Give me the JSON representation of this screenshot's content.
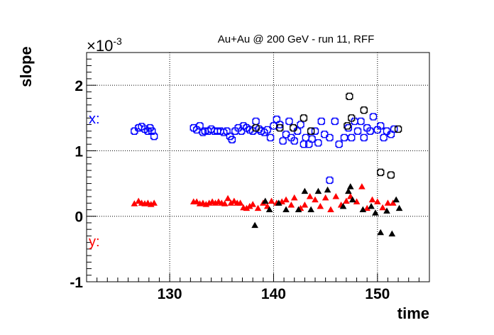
{
  "chart_data": {
    "type": "scatter",
    "title": "Au+Au @ 200 GeV - run 11, RFF",
    "xlabel": "time",
    "ylabel": "slope",
    "y_multiplier": "×10",
    "y_multiplier_exponent": "-3",
    "xlim": [
      122,
      155
    ],
    "ylim": [
      -1,
      2.5
    ],
    "x_ticks": [
      130,
      140,
      150
    ],
    "y_ticks": [
      -1,
      0,
      1,
      2
    ],
    "grid": true,
    "series_labels": {
      "x": "x:",
      "y": "y:"
    },
    "colors": {
      "blue": "#0000ff",
      "red": "#ff0000",
      "black": "#000000"
    },
    "series": [
      {
        "marker": "open-cross",
        "color": "#0000ff",
        "points": [
          [
            126.6,
            1.3
          ],
          [
            127.0,
            1.35
          ],
          [
            127.3,
            1.37
          ],
          [
            127.6,
            1.33
          ],
          [
            127.9,
            1.3
          ],
          [
            128.1,
            1.35
          ],
          [
            128.3,
            1.3
          ],
          [
            128.5,
            1.22
          ],
          [
            132.3,
            1.35
          ],
          [
            132.6,
            1.32
          ],
          [
            132.9,
            1.38
          ],
          [
            133.2,
            1.28
          ],
          [
            133.4,
            1.3
          ],
          [
            133.7,
            1.3
          ],
          [
            134.0,
            1.33
          ],
          [
            134.3,
            1.3
          ],
          [
            134.6,
            1.3
          ],
          [
            134.9,
            1.3
          ],
          [
            135.2,
            1.28
          ],
          [
            135.5,
            1.3
          ],
          [
            135.8,
            1.22
          ],
          [
            136.0,
            1.17
          ],
          [
            136.3,
            1.3
          ],
          [
            136.6,
            1.35
          ],
          [
            136.9,
            1.3
          ],
          [
            137.1,
            1.38
          ],
          [
            137.4,
            1.35
          ],
          [
            137.7,
            1.32
          ],
          [
            138.0,
            1.3
          ],
          [
            138.3,
            1.45
          ],
          [
            138.6,
            1.33
          ],
          [
            138.8,
            1.3
          ],
          [
            139.1,
            1.28
          ],
          [
            139.4,
            1.32
          ],
          [
            139.7,
            1.2
          ],
          [
            140.0,
            1.38
          ],
          [
            140.3,
            1.48
          ],
          [
            140.6,
            1.4
          ],
          [
            140.9,
            1.15
          ],
          [
            141.2,
            1.25
          ],
          [
            141.5,
            1.45
          ],
          [
            141.7,
            1.2
          ],
          [
            142.0,
            1.15
          ],
          [
            142.3,
            1.3
          ],
          [
            142.6,
            1.4
          ],
          [
            142.9,
            1.1
          ],
          [
            143.1,
            1.2
          ],
          [
            143.4,
            1.1
          ],
          [
            143.7,
            1.18
          ],
          [
            144.0,
            1.3
          ],
          [
            144.3,
            1.12
          ],
          [
            144.6,
            1.45
          ],
          [
            144.9,
            1.25
          ],
          [
            145.4,
            1.2
          ],
          [
            145.9,
            1.45
          ],
          [
            146.3,
            1.1
          ],
          [
            146.8,
            1.2
          ],
          [
            147.2,
            1.35
          ],
          [
            147.5,
            1.2
          ],
          [
            147.8,
            1.45
          ],
          [
            148.1,
            1.3
          ],
          [
            148.4,
            1.45
          ],
          [
            148.7,
            1.2
          ],
          [
            149.0,
            1.35
          ],
          [
            149.3,
            1.3
          ],
          [
            149.6,
            1.52
          ],
          [
            150.0,
            1.32
          ],
          [
            150.3,
            1.38
          ],
          [
            150.6,
            1.2
          ],
          [
            150.9,
            1.3
          ],
          [
            151.3,
            1.25
          ],
          [
            151.6,
            1.33
          ],
          [
            145.4,
            0.55
          ]
        ]
      },
      {
        "marker": "open-cross",
        "color": "#000000",
        "points": [
          [
            138.3,
            1.35
          ],
          [
            140.6,
            1.35
          ],
          [
            141.9,
            1.35
          ],
          [
            142.9,
            1.5
          ],
          [
            143.6,
            1.3
          ],
          [
            147.1,
            1.38
          ],
          [
            147.3,
            1.83
          ],
          [
            147.5,
            1.5
          ],
          [
            148.7,
            1.62
          ],
          [
            150.3,
            0.67
          ],
          [
            151.3,
            0.63
          ],
          [
            152.0,
            1.33
          ]
        ]
      },
      {
        "marker": "filled-triangle",
        "color": "#ff0000",
        "points": [
          [
            126.6,
            0.19
          ],
          [
            127.0,
            0.23
          ],
          [
            127.3,
            0.2
          ],
          [
            127.6,
            0.19
          ],
          [
            127.9,
            0.2
          ],
          [
            128.2,
            0.18
          ],
          [
            128.5,
            0.2
          ],
          [
            132.3,
            0.22
          ],
          [
            132.6,
            0.22
          ],
          [
            132.9,
            0.19
          ],
          [
            133.2,
            0.2
          ],
          [
            133.5,
            0.18
          ],
          [
            133.8,
            0.2
          ],
          [
            134.1,
            0.22
          ],
          [
            134.4,
            0.2
          ],
          [
            134.7,
            0.22
          ],
          [
            135.0,
            0.2
          ],
          [
            135.3,
            0.19
          ],
          [
            135.6,
            0.27
          ],
          [
            135.9,
            0.2
          ],
          [
            136.2,
            0.23
          ],
          [
            136.5,
            0.2
          ],
          [
            136.8,
            0.2
          ],
          [
            137.1,
            0.13
          ],
          [
            137.4,
            0.12
          ],
          [
            137.7,
            0.15
          ],
          [
            138.0,
            0.18
          ],
          [
            138.5,
            0.12
          ],
          [
            139.0,
            0.2
          ],
          [
            139.4,
            0.15
          ],
          [
            139.8,
            0.23
          ],
          [
            140.3,
            0.2
          ],
          [
            140.8,
            0.22
          ],
          [
            141.2,
            0.25
          ],
          [
            141.7,
            0.17
          ],
          [
            142.0,
            0.28
          ],
          [
            142.6,
            0.12
          ],
          [
            143.0,
            0.17
          ],
          [
            143.5,
            0.3
          ],
          [
            144.0,
            0.25
          ],
          [
            144.5,
            0.15
          ],
          [
            145.0,
            0.28
          ],
          [
            145.5,
            0.1
          ],
          [
            146.0,
            0.3
          ],
          [
            146.5,
            0.17
          ],
          [
            147.0,
            0.23
          ],
          [
            147.4,
            0.3
          ],
          [
            148.0,
            0.22
          ],
          [
            148.5,
            0.45
          ],
          [
            149.0,
            0.12
          ],
          [
            149.5,
            0.25
          ],
          [
            150.0,
            0.22
          ],
          [
            150.5,
            0.13
          ],
          [
            151.0,
            0.2
          ],
          [
            151.5,
            0.2
          ]
        ]
      },
      {
        "marker": "filled-triangle",
        "color": "#000000",
        "points": [
          [
            138.2,
            -0.14
          ],
          [
            139.2,
            0.23
          ],
          [
            139.6,
            0.1
          ],
          [
            140.5,
            0.2
          ],
          [
            141.2,
            0.1
          ],
          [
            142.4,
            0.1
          ],
          [
            143.0,
            0.38
          ],
          [
            143.6,
            0.1
          ],
          [
            144.3,
            0.38
          ],
          [
            145.2,
            0.4
          ],
          [
            146.7,
            0.15
          ],
          [
            147.2,
            0.38
          ],
          [
            147.4,
            0.45
          ],
          [
            147.6,
            0.25
          ],
          [
            148.6,
            0.1
          ],
          [
            149.4,
            0.15
          ],
          [
            149.8,
            0.05
          ],
          [
            150.3,
            -0.25
          ],
          [
            150.9,
            0.08
          ],
          [
            151.4,
            -0.27
          ],
          [
            151.8,
            0.25
          ],
          [
            152.1,
            0.12
          ]
        ]
      }
    ]
  }
}
